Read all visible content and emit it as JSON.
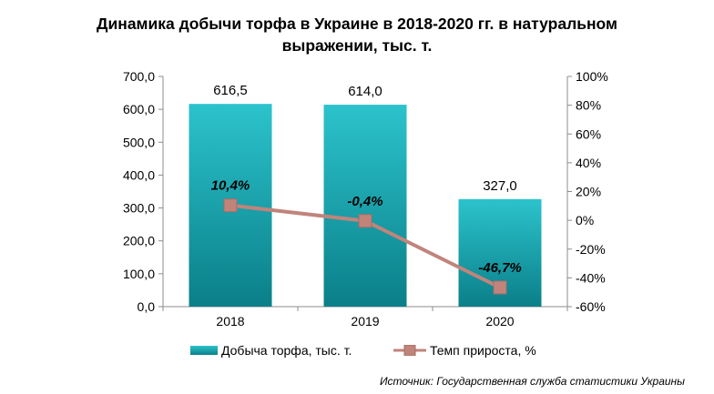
{
  "chart_data": {
    "type": "bar",
    "title_line1": "Динамика добычи торфа в Украине в 2018-2020 гг. в натуральном",
    "title_line2": "выражении, тыс. т.",
    "categories": [
      "2018",
      "2019",
      "2020"
    ],
    "series": [
      {
        "name": "Добыча торфа, тыс. т.",
        "type": "bar",
        "axis": "left",
        "values": [
          616.5,
          614.0,
          327.0
        ],
        "labels": [
          "616,5",
          "614,0",
          "327,0"
        ],
        "color": "#0e9aa7"
      },
      {
        "name": "Темп прироста, %",
        "type": "line",
        "axis": "right",
        "values": [
          10.4,
          -0.4,
          -46.7
        ],
        "labels": [
          "10,4%",
          "-0,4%",
          "-46,7%"
        ],
        "color": "#c0847b"
      }
    ],
    "y_left": {
      "ylim": [
        0,
        700
      ],
      "ticks": [
        "0,0",
        "100,0",
        "200,0",
        "300,0",
        "400,0",
        "500,0",
        "600,0",
        "700,0"
      ]
    },
    "y_right": {
      "ylim": [
        -60,
        100
      ],
      "ticks": [
        "-60%",
        "-40%",
        "-20%",
        "0%",
        "20%",
        "40%",
        "60%",
        "80%",
        "100%"
      ]
    },
    "legend_position": "bottom",
    "grid": false
  },
  "source": "Источник: Государственная служба статистики Украины"
}
